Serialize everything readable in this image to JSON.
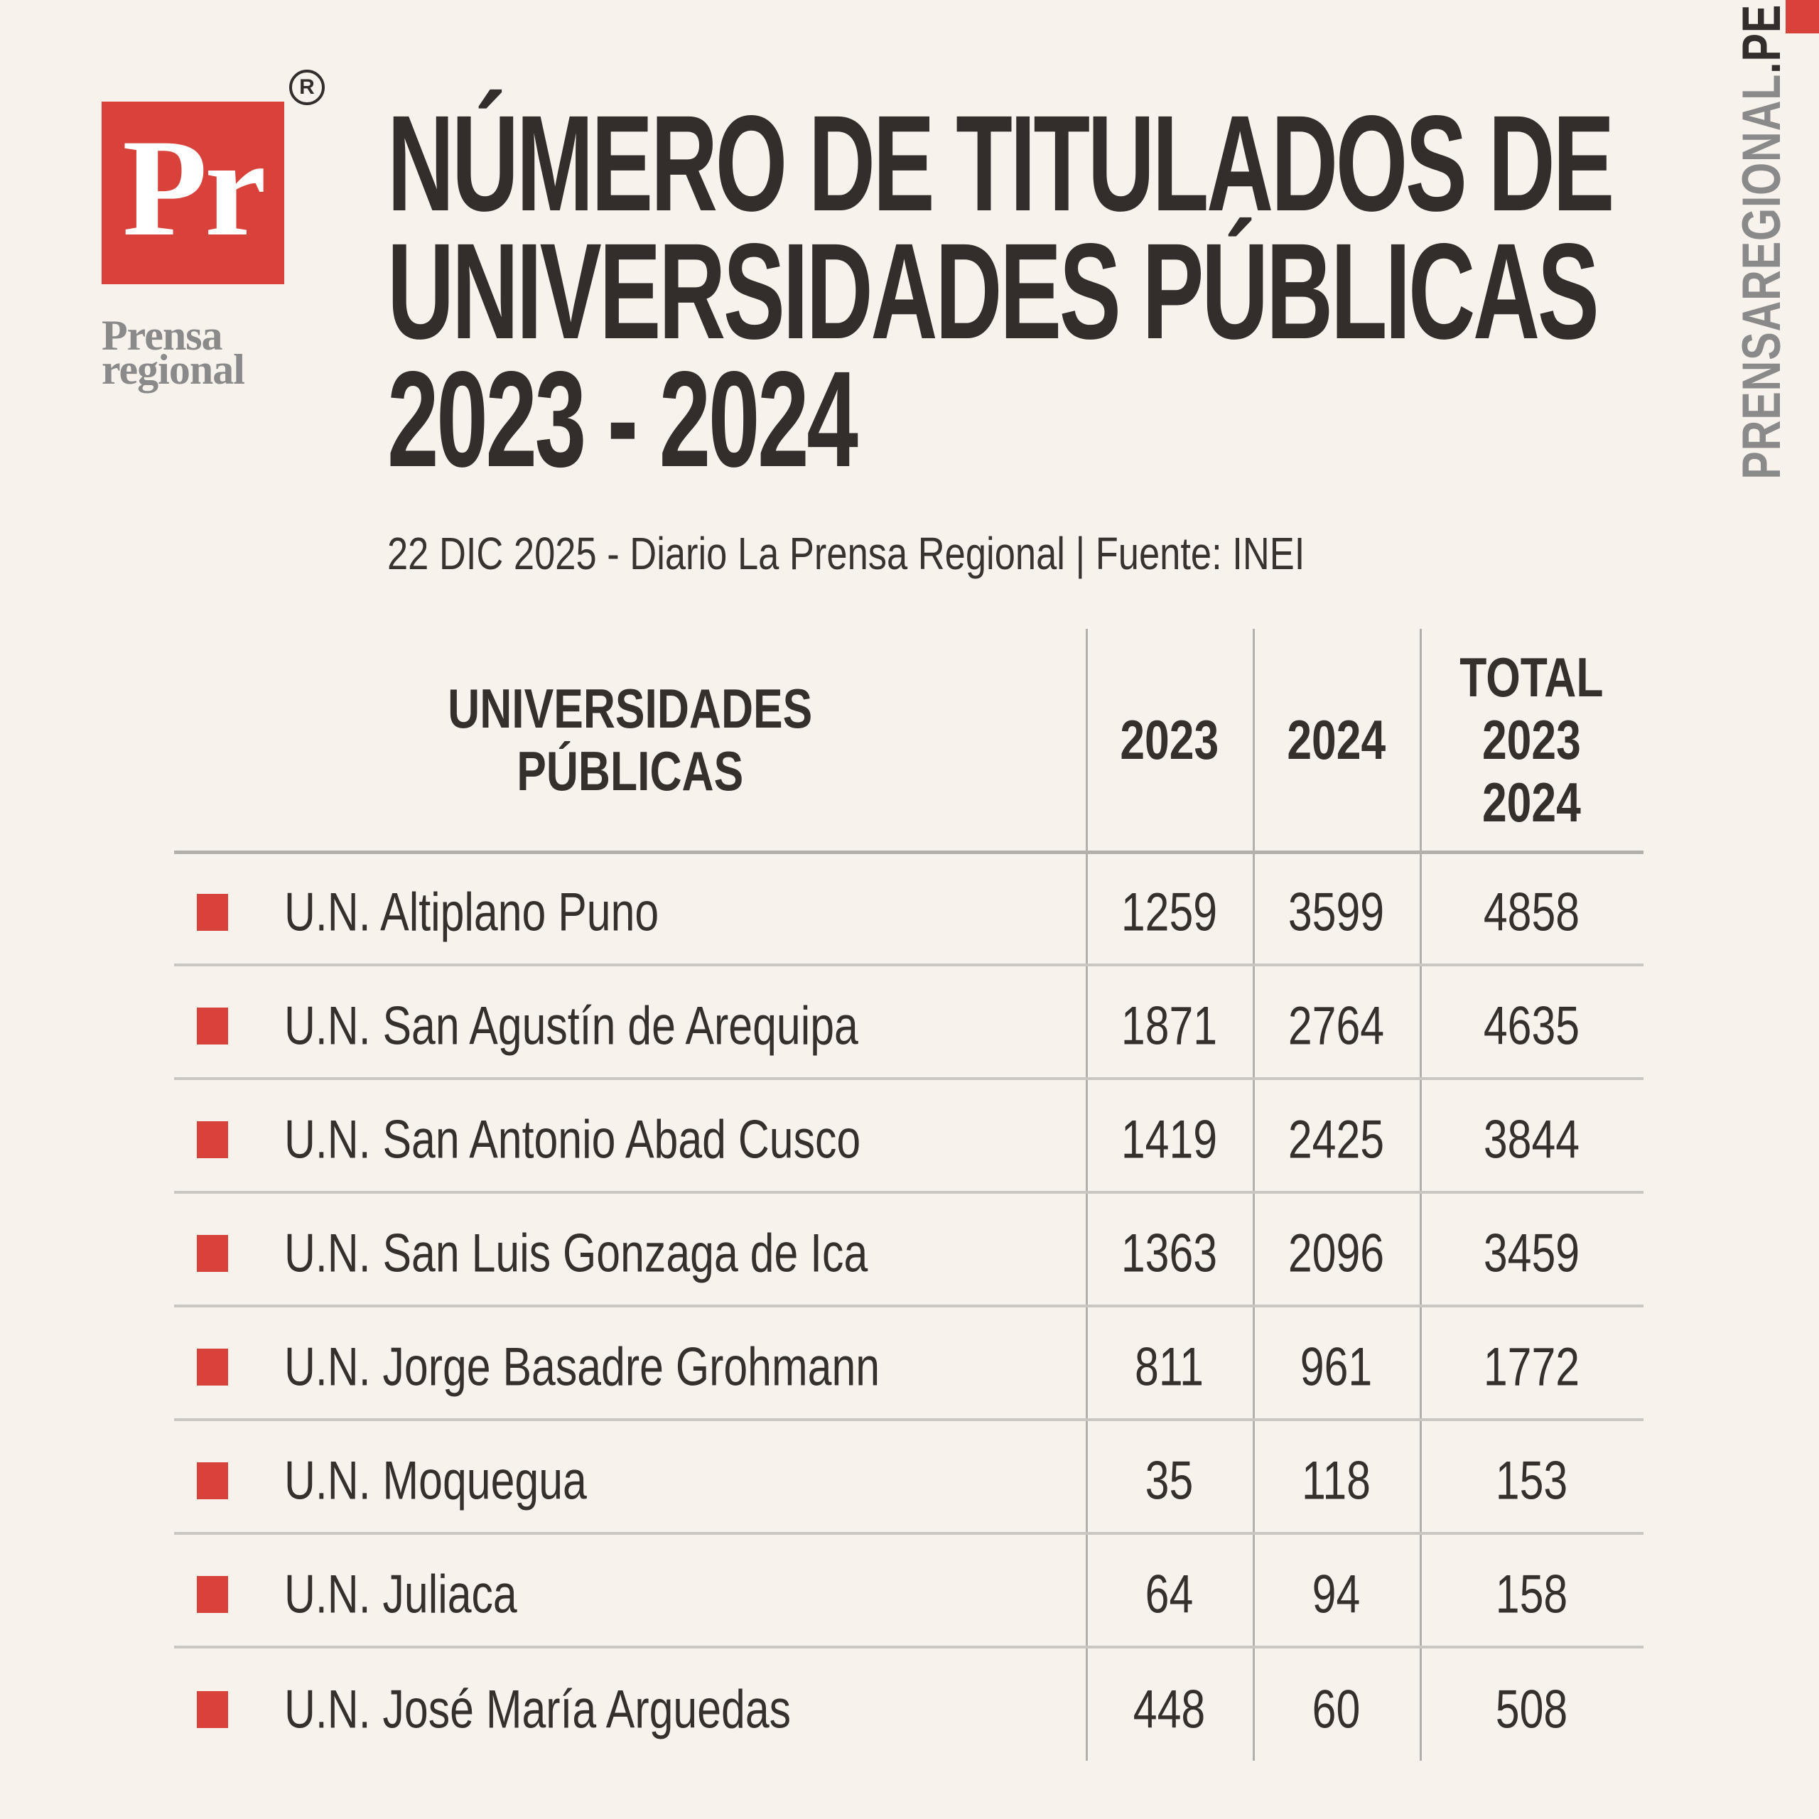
{
  "page": {
    "colors": {
      "background": "#f8f2ec",
      "accent_red": "#d8423a",
      "ink": "#332e2b",
      "gray": "#8a8a8a",
      "line_light": "#c9c5c1",
      "line_mid": "#b3afab",
      "text": "#35302c"
    }
  },
  "brand": {
    "logo_monogram": "Pr",
    "registered_mark": "R",
    "logo_caption_line1": "Prensa",
    "logo_caption_line2": "regional",
    "site_vertical_gray": "PRENSAREGIONAL",
    "site_vertical_dark": ".PE"
  },
  "header": {
    "title_lines": [
      "NÚMERO DE TITULADOS DE",
      "UNIVERSIDADES PÚBLICAS",
      "2023 - 2024"
    ],
    "subtitle": "22 DIC 2025 - Diario La Prensa Regional | Fuente: INEI"
  },
  "table": {
    "header_lines": {
      "col1": [
        "UNIVERSIDADES",
        "PÚBLICAS"
      ],
      "col2": "2023",
      "col3": "2024",
      "col4": [
        "TOTAL",
        "2023",
        "2024"
      ]
    }
  },
  "chart_data": {
    "type": "table",
    "title": "NÚMERO DE TITULADOS DE UNIVERSIDADES PÚBLICAS 2023 - 2024",
    "subtitle": "22 DIC 2025 - Diario La Prensa Regional | Fuente: INEI",
    "columns": [
      "UNIVERSIDADES PÚBLICAS",
      "2023",
      "2024",
      "TOTAL 2023 2024"
    ],
    "rows": [
      {
        "name": "U.N. Altiplano Puno",
        "values": [
          1259,
          3599,
          4858
        ]
      },
      {
        "name": "U.N. San Agustín de Arequipa",
        "values": [
          1871,
          2764,
          4635
        ]
      },
      {
        "name": "U.N. San Antonio Abad Cusco",
        "values": [
          1419,
          2425,
          3844
        ]
      },
      {
        "name": "U.N. San Luis Gonzaga de Ica",
        "values": [
          1363,
          2096,
          3459
        ]
      },
      {
        "name": "U.N. Jorge Basadre Grohmann",
        "values": [
          811,
          961,
          1772
        ]
      },
      {
        "name": "U.N. Moquegua",
        "values": [
          35,
          118,
          153
        ]
      },
      {
        "name": "U.N. Juliaca",
        "values": [
          64,
          94,
          158
        ]
      },
      {
        "name": "U.N. José María Arguedas",
        "values": [
          448,
          60,
          508
        ]
      }
    ]
  }
}
